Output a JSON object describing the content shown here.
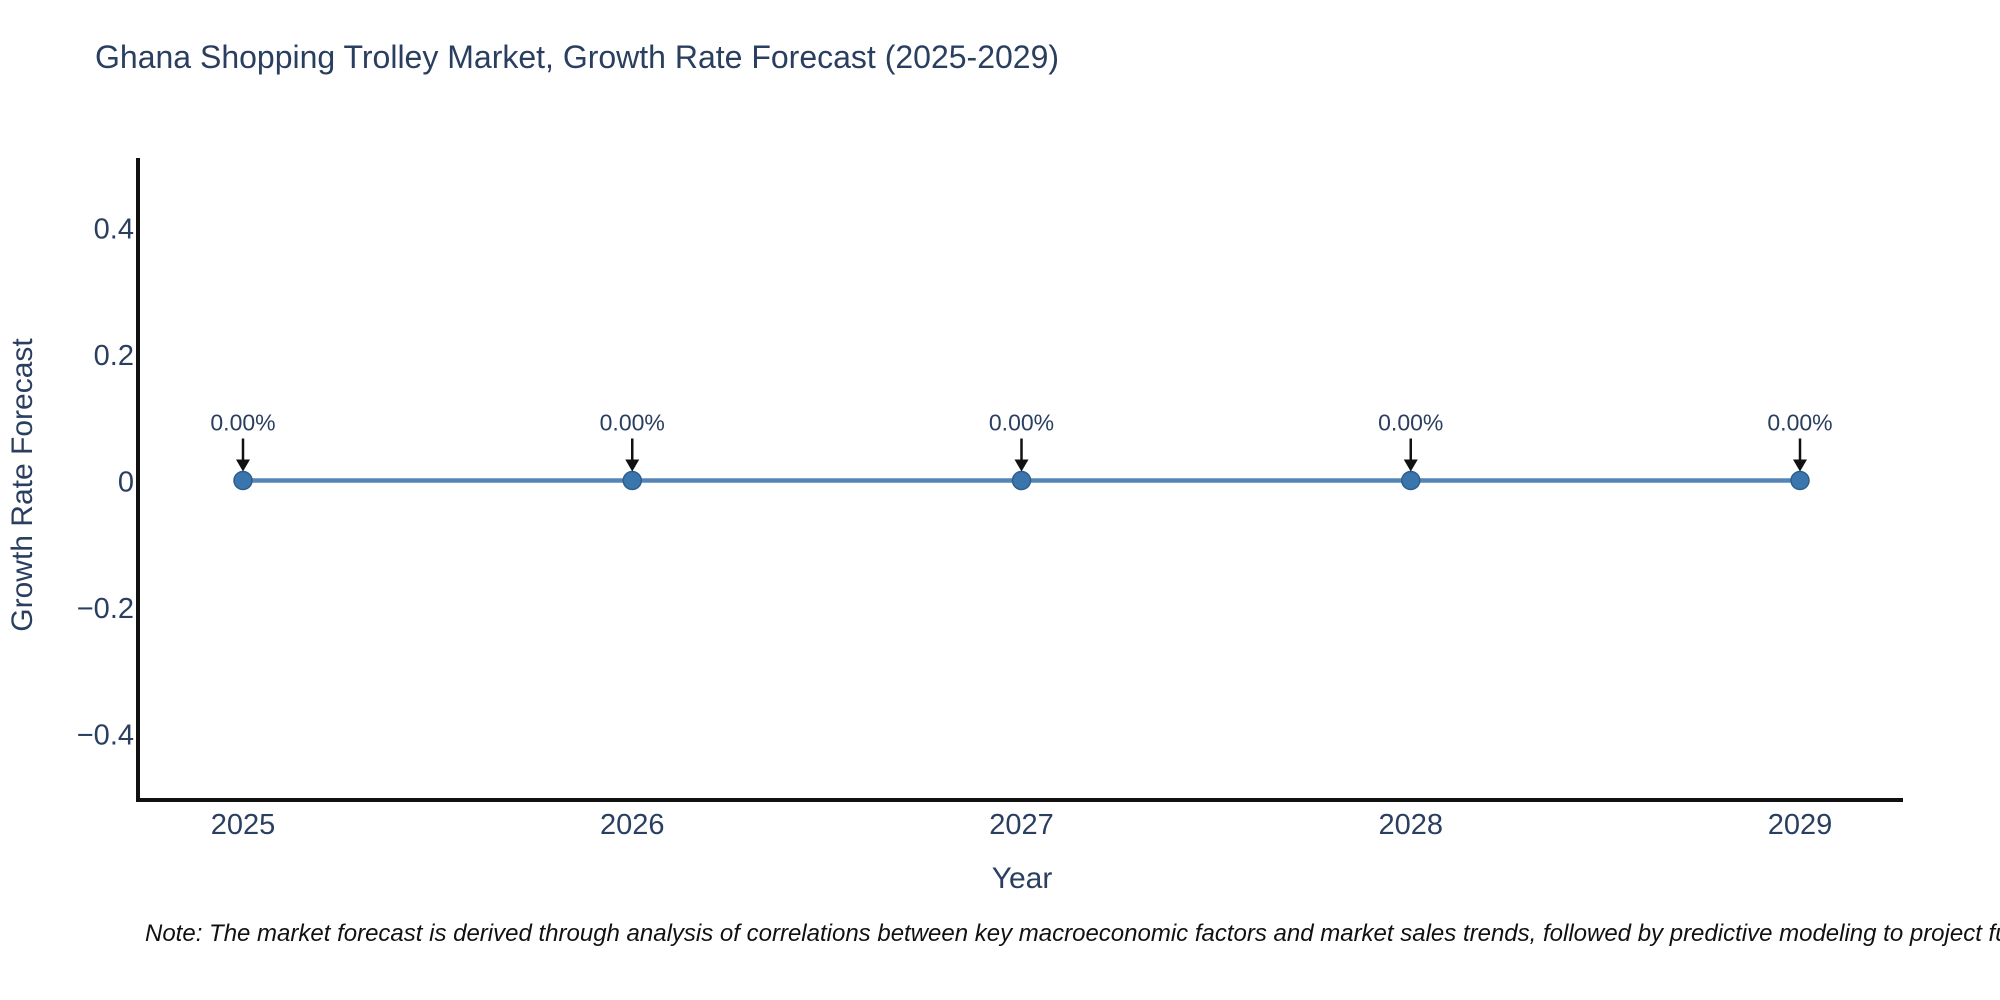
{
  "chart_data": {
    "type": "line",
    "title": "Ghana Shopping Trolley Market, Growth Rate Forecast (2025-2029)",
    "xlabel": "Year",
    "ylabel": "Growth Rate Forecast",
    "x": [
      "2025",
      "2026",
      "2027",
      "2028",
      "2029"
    ],
    "series": [
      {
        "name": "Growth Rate Forecast",
        "values": [
          0,
          0,
          0,
          0,
          0
        ]
      }
    ],
    "point_labels": [
      "0.00%",
      "0.00%",
      "0.00%",
      "0.00%",
      "0.00%"
    ],
    "ylim": [
      -0.5,
      0.5
    ],
    "yticks": [
      {
        "value": 0.4,
        "label": "0.4"
      },
      {
        "value": 0.2,
        "label": "0.2"
      },
      {
        "value": 0,
        "label": "0"
      },
      {
        "value": -0.2,
        "label": "−0.2"
      },
      {
        "value": -0.4,
        "label": "−0.4"
      }
    ],
    "grid": false,
    "legend_position": "none",
    "colors": {
      "text": "#2a3f5f",
      "axis": "#111111",
      "line": "#5585b5",
      "marker": "#3a76ad",
      "marker_edge": "#2c5f8a",
      "arrow": "#111111"
    },
    "note": "Note: The market forecast is derived through analysis of correlations between key macroeconomic factors and market sales trends, followed by predictive modeling to project future sales."
  }
}
